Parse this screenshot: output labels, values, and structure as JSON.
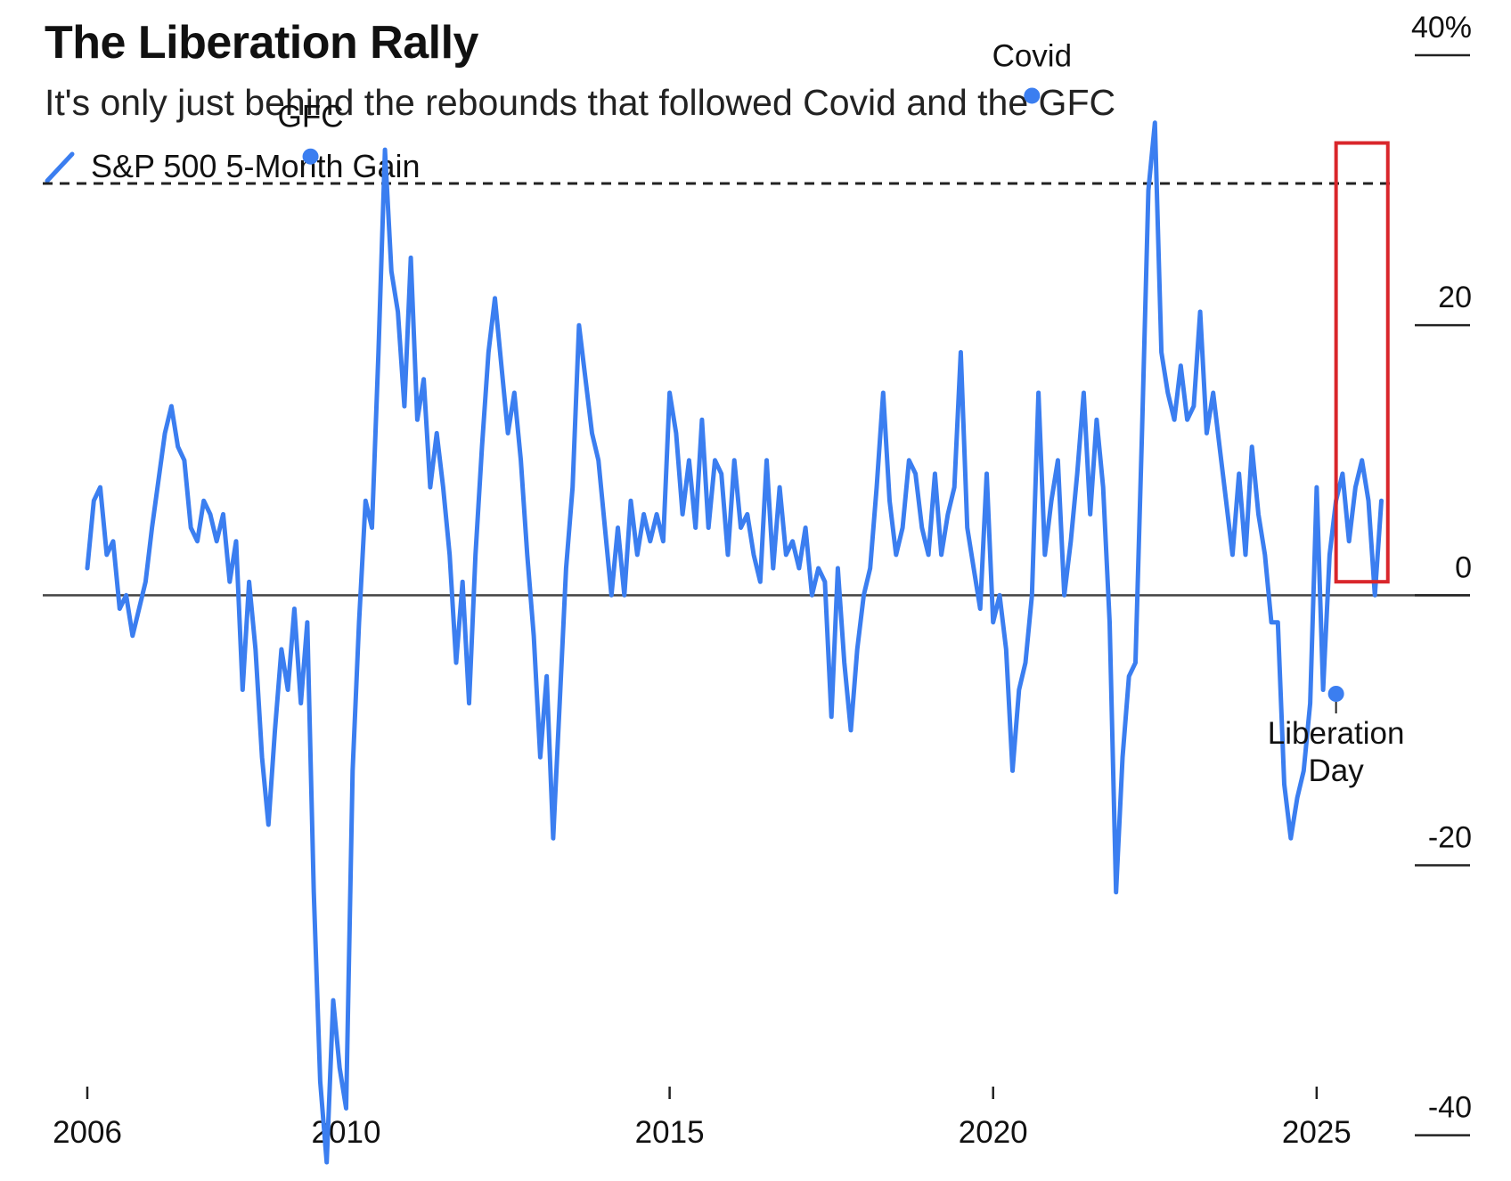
{
  "header": {
    "title": "The Liberation Rally",
    "subtitle": "It's only just behind the rebounds that followed Covid and the GFC"
  },
  "colors": {
    "series": "#3b7ef0",
    "highlight_box": "#d9262b",
    "zero_line": "#444444",
    "reference_line": "#222222",
    "text": "#111111"
  },
  "chart_data": {
    "type": "line",
    "title": "The Liberation Rally",
    "subtitle": "It's only just behind the rebounds that followed Covid and the GFC",
    "xlabel": "",
    "ylabel": "",
    "xlim": [
      2006,
      2026.2
    ],
    "ylim": [
      -42,
      40
    ],
    "x_ticks": [
      2006,
      2010,
      2015,
      2020,
      2025
    ],
    "x_tick_labels": [
      "2006",
      "2010",
      "2015",
      "2020",
      "2025"
    ],
    "y_ticks": [
      40,
      20,
      0,
      -20,
      -40
    ],
    "y_tick_labels": [
      "40%",
      "20",
      "0",
      "-20",
      "-40"
    ],
    "legend": {
      "position": "top-left",
      "entries": [
        "S&P 500 5-Month Gain"
      ]
    },
    "reference_line": {
      "y": 30.5,
      "style": "dashed"
    },
    "highlight_box": {
      "x": [
        2025.3,
        2026.1
      ],
      "y": [
        1,
        33.5
      ]
    },
    "annotations": [
      {
        "text": "GFC",
        "x": 2009.45,
        "y": 32.5
      },
      {
        "text": "Covid",
        "x": 2020.6,
        "y": 37
      },
      {
        "text": "Liberation",
        "x": 2025.3,
        "y": -7.3
      },
      {
        "text": "Day",
        "x": 2025.3,
        "y": -7.3
      }
    ],
    "series": [
      {
        "name": "S&P 500 5-Month Gain",
        "points": [
          [
            2006.0,
            2
          ],
          [
            2006.1,
            7
          ],
          [
            2006.2,
            8
          ],
          [
            2006.3,
            3
          ],
          [
            2006.4,
            4
          ],
          [
            2006.5,
            -1
          ],
          [
            2006.6,
            0
          ],
          [
            2006.7,
            -3
          ],
          [
            2006.8,
            -1
          ],
          [
            2006.9,
            1
          ],
          [
            2007.0,
            5
          ],
          [
            2007.2,
            12
          ],
          [
            2007.3,
            14
          ],
          [
            2007.4,
            11
          ],
          [
            2007.5,
            10
          ],
          [
            2007.6,
            5
          ],
          [
            2007.7,
            4
          ],
          [
            2007.8,
            7
          ],
          [
            2007.9,
            6
          ],
          [
            2008.0,
            4
          ],
          [
            2008.1,
            6
          ],
          [
            2008.2,
            1
          ],
          [
            2008.3,
            4
          ],
          [
            2008.4,
            -7
          ],
          [
            2008.5,
            1
          ],
          [
            2008.6,
            -4
          ],
          [
            2008.7,
            -12
          ],
          [
            2008.8,
            -17
          ],
          [
            2008.9,
            -10
          ],
          [
            2009.0,
            -4
          ],
          [
            2009.1,
            -7
          ],
          [
            2009.2,
            -1
          ],
          [
            2009.3,
            -8
          ],
          [
            2009.4,
            -2
          ],
          [
            2009.5,
            -22
          ],
          [
            2009.6,
            -36
          ],
          [
            2009.7,
            -42
          ],
          [
            2009.8,
            -30
          ],
          [
            2009.9,
            -35
          ],
          [
            2010.0,
            -38
          ],
          [
            2010.1,
            -13
          ],
          [
            2010.2,
            -2
          ],
          [
            2010.3,
            7
          ],
          [
            2010.4,
            5
          ],
          [
            2010.5,
            18
          ],
          [
            2010.6,
            33
          ],
          [
            2010.7,
            24
          ],
          [
            2010.8,
            21
          ],
          [
            2010.9,
            14
          ],
          [
            2011.0,
            25
          ],
          [
            2011.1,
            13
          ],
          [
            2011.2,
            16
          ],
          [
            2011.3,
            8
          ],
          [
            2011.4,
            12
          ],
          [
            2011.5,
            8
          ],
          [
            2011.6,
            3
          ],
          [
            2011.7,
            -5
          ],
          [
            2011.8,
            1
          ],
          [
            2011.9,
            -8
          ],
          [
            2012.0,
            3
          ],
          [
            2012.1,
            11
          ],
          [
            2012.2,
            18
          ],
          [
            2012.3,
            22
          ],
          [
            2012.4,
            17
          ],
          [
            2012.5,
            12
          ],
          [
            2012.6,
            15
          ],
          [
            2012.7,
            10
          ],
          [
            2012.8,
            3
          ],
          [
            2012.9,
            -3
          ],
          [
            2013.0,
            -12
          ],
          [
            2013.1,
            -6
          ],
          [
            2013.2,
            -18
          ],
          [
            2013.3,
            -8
          ],
          [
            2013.4,
            2
          ],
          [
            2013.5,
            8
          ],
          [
            2013.6,
            20
          ],
          [
            2013.7,
            16
          ],
          [
            2013.8,
            12
          ],
          [
            2013.9,
            10
          ],
          [
            2014.0,
            5
          ],
          [
            2014.1,
            0
          ],
          [
            2014.2,
            5
          ],
          [
            2014.3,
            0
          ],
          [
            2014.4,
            7
          ],
          [
            2014.5,
            3
          ],
          [
            2014.6,
            6
          ],
          [
            2014.7,
            4
          ],
          [
            2014.8,
            6
          ],
          [
            2014.9,
            4
          ],
          [
            2015.0,
            15
          ],
          [
            2015.1,
            12
          ],
          [
            2015.2,
            6
          ],
          [
            2015.3,
            10
          ],
          [
            2015.4,
            5
          ],
          [
            2015.5,
            13
          ],
          [
            2015.6,
            5
          ],
          [
            2015.7,
            10
          ],
          [
            2015.8,
            9
          ],
          [
            2015.9,
            3
          ],
          [
            2016.0,
            10
          ],
          [
            2016.1,
            5
          ],
          [
            2016.2,
            6
          ],
          [
            2016.3,
            3
          ],
          [
            2016.4,
            1
          ],
          [
            2016.5,
            10
          ],
          [
            2016.6,
            2
          ],
          [
            2016.7,
            8
          ],
          [
            2016.8,
            3
          ],
          [
            2016.9,
            4
          ],
          [
            2017.0,
            2
          ],
          [
            2017.1,
            5
          ],
          [
            2017.2,
            0
          ],
          [
            2017.3,
            2
          ],
          [
            2017.4,
            1
          ],
          [
            2017.5,
            -9
          ],
          [
            2017.6,
            2
          ],
          [
            2017.7,
            -5
          ],
          [
            2017.8,
            -10
          ],
          [
            2017.9,
            -4
          ],
          [
            2018.0,
            0
          ],
          [
            2018.1,
            2
          ],
          [
            2018.2,
            8
          ],
          [
            2018.3,
            15
          ],
          [
            2018.4,
            7
          ],
          [
            2018.5,
            3
          ],
          [
            2018.6,
            5
          ],
          [
            2018.7,
            10
          ],
          [
            2018.8,
            9
          ],
          [
            2018.9,
            5
          ],
          [
            2019.0,
            3
          ],
          [
            2019.1,
            9
          ],
          [
            2019.2,
            3
          ],
          [
            2019.3,
            6
          ],
          [
            2019.4,
            8
          ],
          [
            2019.5,
            18
          ],
          [
            2019.6,
            5
          ],
          [
            2019.7,
            2
          ],
          [
            2019.8,
            -1
          ],
          [
            2019.9,
            9
          ],
          [
            2020.0,
            -2
          ],
          [
            2020.1,
            0
          ],
          [
            2020.2,
            -4
          ],
          [
            2020.3,
            -13
          ],
          [
            2020.4,
            -7
          ],
          [
            2020.5,
            -5
          ],
          [
            2020.6,
            0
          ],
          [
            2020.7,
            15
          ],
          [
            2020.8,
            3
          ],
          [
            2020.9,
            7
          ],
          [
            2021.0,
            10
          ],
          [
            2021.1,
            0
          ],
          [
            2021.2,
            4
          ],
          [
            2021.3,
            9
          ],
          [
            2021.4,
            15
          ],
          [
            2021.5,
            6
          ],
          [
            2021.6,
            13
          ],
          [
            2021.7,
            8
          ],
          [
            2021.8,
            -2
          ],
          [
            2021.9,
            -22
          ],
          [
            2022.0,
            -12
          ],
          [
            2022.1,
            -6
          ],
          [
            2022.2,
            -5
          ],
          [
            2022.3,
            12
          ],
          [
            2022.4,
            30
          ],
          [
            2022.5,
            35
          ],
          [
            2022.6,
            18
          ],
          [
            2022.7,
            15
          ],
          [
            2022.8,
            13
          ],
          [
            2022.9,
            17
          ],
          [
            2023.0,
            13
          ],
          [
            2023.1,
            14
          ],
          [
            2023.2,
            21
          ],
          [
            2023.3,
            12
          ],
          [
            2023.4,
            15
          ],
          [
            2023.5,
            11
          ],
          [
            2023.6,
            7
          ],
          [
            2023.7,
            3
          ],
          [
            2023.8,
            9
          ],
          [
            2023.9,
            3
          ],
          [
            2024.0,
            11
          ],
          [
            2024.1,
            6
          ],
          [
            2024.2,
            3
          ],
          [
            2024.3,
            -2
          ],
          [
            2024.4,
            -2
          ],
          [
            2024.5,
            -14
          ],
          [
            2024.6,
            -18
          ],
          [
            2024.7,
            -15
          ],
          [
            2024.8,
            -13
          ],
          [
            2024.9,
            -8
          ],
          [
            2025.0,
            8
          ],
          [
            2025.1,
            -7
          ],
          [
            2025.2,
            3
          ],
          [
            2025.3,
            7
          ],
          [
            2025.4,
            9
          ],
          [
            2025.5,
            4
          ],
          [
            2025.6,
            8
          ],
          [
            2025.7,
            10
          ],
          [
            2025.8,
            7
          ],
          [
            2025.9,
            0
          ],
          [
            2026.0,
            7
          ]
        ]
      }
    ]
  }
}
